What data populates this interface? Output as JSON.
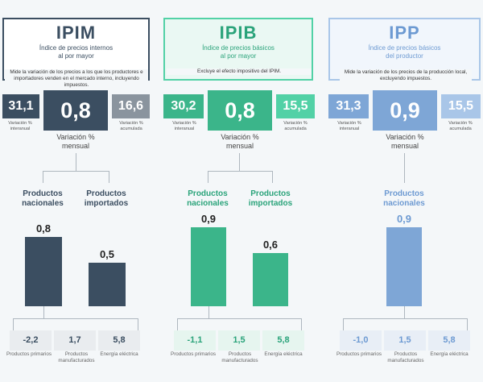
{
  "ipim": {
    "title": "IPIM",
    "subtitle": "Índice de precios internos al por mayor",
    "description": "Mide la variación de los precios a los que los productores e importadores venden en el mercado interno, incluyendo impuestos.",
    "interannual": "31,1",
    "interannual_label": "Variación % interanual",
    "monthly": "0,8",
    "monthly_label": "Variación % mensual",
    "accumulated": "16,6",
    "accumulated_label": "Variación % acumulada",
    "categories": [
      {
        "label": "Productos nacionales",
        "value": 0.8,
        "display": "0,8"
      },
      {
        "label": "Productos importados",
        "value": 0.5,
        "display": "0,5"
      }
    ],
    "breakdown": [
      {
        "value": "-2,2",
        "label": "Productos primarios"
      },
      {
        "value": "1,7",
        "label": "Productos manufacturados"
      },
      {
        "value": "5,8",
        "label": "Energía eléctrica"
      }
    ]
  },
  "ipib": {
    "title": "IPIB",
    "subtitle": "Índice de precios básicos al por mayor",
    "description": "Excluye el efecto impositivo del IPIM.",
    "interannual": "30,2",
    "interannual_label": "Variación % interanual",
    "monthly": "0,8",
    "monthly_label": "Variación % mensual",
    "accumulated": "15,5",
    "accumulated_label": "Variación % acumulada",
    "categories": [
      {
        "label": "Productos nacionales",
        "value": 0.9,
        "display": "0,9"
      },
      {
        "label": "Productos importados",
        "value": 0.6,
        "display": "0,6"
      }
    ],
    "breakdown": [
      {
        "value": "-1,1",
        "label": "Productos primarios"
      },
      {
        "value": "1,5",
        "label": "Productos manufacturados"
      },
      {
        "value": "5,8",
        "label": "Energía eléctrica"
      }
    ]
  },
  "ipp": {
    "title": "IPP",
    "subtitle": "Índice de precios básicos del productor",
    "description": "Mide la variación de los precios de la producción local, excluyendo impuestos.",
    "interannual": "31,3",
    "interannual_label": "Variación % interanual",
    "monthly": "0,9",
    "monthly_label": "Variación % mensual",
    "accumulated": "15,5",
    "accumulated_label": "Variación % acumulada",
    "categories": [
      {
        "label": "Productos nacionales",
        "value": 0.9,
        "display": "0,9"
      }
    ],
    "breakdown": [
      {
        "value": "-1,0",
        "label": "Productos primarios"
      },
      {
        "value": "1,5",
        "label": "Productos manufacturados"
      },
      {
        "value": "5,8",
        "label": "Energía eléctrica"
      }
    ]
  },
  "colors": {
    "ipim_dark": "#3b4e61",
    "ipim_mid": "#8a949e",
    "ipib_green": "#3bb58a",
    "ipib_light": "#52d1a6",
    "ipib_title": "#2aa37a",
    "ipp_blue": "#7ea6d6",
    "ipp_light": "#a9c6e8",
    "ipp_title": "#6d9ad2"
  }
}
